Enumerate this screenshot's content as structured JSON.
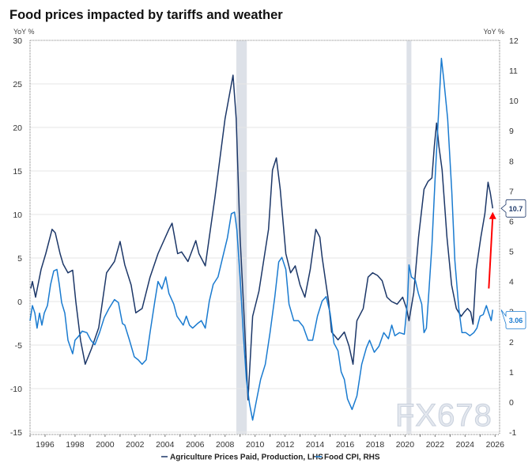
{
  "chart_data": {
    "type": "line",
    "title": "Food prices impacted by tariffs and weather",
    "left_axis": {
      "label": "YoY %",
      "ylim": [
        -15,
        30
      ],
      "ticks": [
        -15,
        -10,
        -5,
        0,
        5,
        10,
        15,
        20,
        25,
        30
      ]
    },
    "right_axis": {
      "label": "YoY %",
      "ylim": [
        -1,
        12
      ],
      "ticks": [
        -1,
        0,
        1,
        2,
        3,
        4,
        5,
        6,
        7,
        8,
        9,
        10,
        11,
        12
      ]
    },
    "x_axis": {
      "xlim": [
        1995,
        2026.3
      ],
      "ticks": [
        "1996",
        "1998",
        "2000",
        "2002",
        "2004",
        "2006",
        "2008",
        "2010",
        "2012",
        "2014",
        "2016",
        "2018",
        "2020",
        "2022",
        "2024",
        "2026"
      ]
    },
    "grid": "horizontal",
    "legend_placement": "bottom",
    "recessions": [
      [
        2008.75,
        2009.45
      ],
      [
        2020.1,
        2020.42
      ]
    ],
    "series": [
      {
        "name": "Agriculture Prices Paid, Production, LHS",
        "axis": "left",
        "color": "#1c3768",
        "last_value_label": "10.7",
        "points": [
          [
            1995.05,
            1.5
          ],
          [
            1995.16,
            2.3
          ],
          [
            1995.37,
            0.5
          ],
          [
            1995.74,
            3.7
          ],
          [
            1996.05,
            5.5
          ],
          [
            1996.47,
            8.3
          ],
          [
            1996.68,
            7.9
          ],
          [
            1997.0,
            5.5
          ],
          [
            1997.21,
            4.3
          ],
          [
            1997.53,
            3.3
          ],
          [
            1997.84,
            3.6
          ],
          [
            1998.05,
            0
          ],
          [
            1998.37,
            -4.5
          ],
          [
            1998.68,
            -7.2
          ],
          [
            1999.1,
            -5.4
          ],
          [
            1999.58,
            -3
          ],
          [
            2000.1,
            3.3
          ],
          [
            2000.63,
            4.6
          ],
          [
            2001.0,
            6.9
          ],
          [
            2001.32,
            4.2
          ],
          [
            2001.74,
            1.9
          ],
          [
            2002.05,
            -1.3
          ],
          [
            2002.47,
            -0.8
          ],
          [
            2003.0,
            2.8
          ],
          [
            2003.53,
            5.5
          ],
          [
            2004.26,
            8.3
          ],
          [
            2004.47,
            9
          ],
          [
            2004.84,
            5.5
          ],
          [
            2005.1,
            5.7
          ],
          [
            2005.53,
            4.6
          ],
          [
            2006.05,
            7
          ],
          [
            2006.26,
            5.5
          ],
          [
            2006.68,
            4.1
          ],
          [
            2006.95,
            7.4
          ],
          [
            2007.32,
            11.9
          ],
          [
            2008.0,
            21
          ],
          [
            2008.53,
            26
          ],
          [
            2008.74,
            21
          ],
          [
            2009.0,
            7.4
          ],
          [
            2009.32,
            -3.5
          ],
          [
            2009.53,
            -11.3
          ],
          [
            2009.84,
            -1.7
          ],
          [
            2010.26,
            1.2
          ],
          [
            2010.9,
            8.3
          ],
          [
            2011.16,
            15.1
          ],
          [
            2011.42,
            16.5
          ],
          [
            2011.68,
            12.9
          ],
          [
            2012.05,
            5.5
          ],
          [
            2012.37,
            3.3
          ],
          [
            2012.68,
            4.1
          ],
          [
            2013.0,
            1.9
          ],
          [
            2013.32,
            0.5
          ],
          [
            2013.68,
            3.7
          ],
          [
            2014.05,
            8.3
          ],
          [
            2014.32,
            7.4
          ],
          [
            2014.47,
            5.1
          ],
          [
            2014.74,
            1.9
          ],
          [
            2014.9,
            0
          ],
          [
            2015.1,
            -3.5
          ],
          [
            2015.53,
            -4.4
          ],
          [
            2015.95,
            -3.5
          ],
          [
            2016.26,
            -5.1
          ],
          [
            2016.53,
            -7.2
          ],
          [
            2016.79,
            -2.2
          ],
          [
            2017.21,
            -0.8
          ],
          [
            2017.53,
            2.8
          ],
          [
            2017.84,
            3.3
          ],
          [
            2018.16,
            3
          ],
          [
            2018.47,
            2.4
          ],
          [
            2018.79,
            0.5
          ],
          [
            2019.1,
            0
          ],
          [
            2019.47,
            -0.3
          ],
          [
            2019.84,
            0.5
          ],
          [
            2020.1,
            -0.8
          ],
          [
            2020.26,
            -2.2
          ],
          [
            2020.58,
            1
          ],
          [
            2020.9,
            7.4
          ],
          [
            2021.26,
            12.9
          ],
          [
            2021.53,
            13.8
          ],
          [
            2021.79,
            14.2
          ],
          [
            2021.95,
            17.8
          ],
          [
            2022.1,
            20.5
          ],
          [
            2022.26,
            17.8
          ],
          [
            2022.47,
            15.1
          ],
          [
            2022.79,
            7.4
          ],
          [
            2023.1,
            1.9
          ],
          [
            2023.42,
            -0.8
          ],
          [
            2023.74,
            -1.7
          ],
          [
            2023.95,
            -1.2
          ],
          [
            2024.16,
            -0.8
          ],
          [
            2024.37,
            -1.2
          ],
          [
            2024.53,
            -2.6
          ],
          [
            2024.74,
            3.7
          ],
          [
            2025.05,
            7.4
          ],
          [
            2025.32,
            10.1
          ],
          [
            2025.53,
            13.7
          ],
          [
            2025.68,
            12.5
          ],
          [
            2025.84,
            10.7
          ]
        ]
      },
      {
        "name": "Food CPI, RHS",
        "axis": "right",
        "color": "#1a7bd0",
        "last_value_label": "3.06",
        "points": [
          [
            1995.0,
            2.7
          ],
          [
            1995.16,
            3.2
          ],
          [
            1995.32,
            2.95
          ],
          [
            1995.47,
            2.45
          ],
          [
            1995.63,
            2.95
          ],
          [
            1995.79,
            2.55
          ],
          [
            1995.95,
            2.95
          ],
          [
            1996.16,
            3.2
          ],
          [
            1996.37,
            3.9
          ],
          [
            1996.58,
            4.35
          ],
          [
            1996.79,
            4.4
          ],
          [
            1996.95,
            3.9
          ],
          [
            1997.11,
            3.3
          ],
          [
            1997.32,
            2.95
          ],
          [
            1997.53,
            2.05
          ],
          [
            1997.84,
            1.6
          ],
          [
            1998.0,
            2.05
          ],
          [
            1998.26,
            2.2
          ],
          [
            1998.47,
            2.35
          ],
          [
            1998.79,
            2.3
          ],
          [
            1999.05,
            2.05
          ],
          [
            1999.32,
            1.9
          ],
          [
            1999.63,
            2.3
          ],
          [
            1999.95,
            2.8
          ],
          [
            2000.26,
            3.1
          ],
          [
            2000.63,
            3.4
          ],
          [
            2000.89,
            3.3
          ],
          [
            2001.16,
            2.6
          ],
          [
            2001.32,
            2.55
          ],
          [
            2001.63,
            2.05
          ],
          [
            2001.95,
            1.5
          ],
          [
            2002.21,
            1.4
          ],
          [
            2002.47,
            1.25
          ],
          [
            2002.74,
            1.4
          ],
          [
            2003.0,
            2.3
          ],
          [
            2003.32,
            3.35
          ],
          [
            2003.53,
            4.0
          ],
          [
            2003.79,
            3.75
          ],
          [
            2004.05,
            4.15
          ],
          [
            2004.26,
            3.6
          ],
          [
            2004.58,
            3.25
          ],
          [
            2004.79,
            2.85
          ],
          [
            2005.0,
            2.7
          ],
          [
            2005.21,
            2.55
          ],
          [
            2005.42,
            2.85
          ],
          [
            2005.63,
            2.55
          ],
          [
            2005.84,
            2.45
          ],
          [
            2006.16,
            2.6
          ],
          [
            2006.42,
            2.7
          ],
          [
            2006.68,
            2.45
          ],
          [
            2006.95,
            3.35
          ],
          [
            2007.21,
            3.9
          ],
          [
            2007.53,
            4.15
          ],
          [
            2007.84,
            4.8
          ],
          [
            2008.16,
            5.45
          ],
          [
            2008.42,
            6.25
          ],
          [
            2008.63,
            6.3
          ],
          [
            2008.79,
            5.7
          ],
          [
            2009.0,
            4.15
          ],
          [
            2009.21,
            2.3
          ],
          [
            2009.42,
            0.75
          ],
          [
            2009.63,
            -0.05
          ],
          [
            2009.84,
            -0.6
          ],
          [
            2010.11,
            0.1
          ],
          [
            2010.37,
            0.75
          ],
          [
            2010.68,
            1.25
          ],
          [
            2011.0,
            2.3
          ],
          [
            2011.32,
            3.5
          ],
          [
            2011.58,
            4.65
          ],
          [
            2011.79,
            4.8
          ],
          [
            2012.05,
            4.4
          ],
          [
            2012.26,
            3.25
          ],
          [
            2012.58,
            2.7
          ],
          [
            2012.89,
            2.7
          ],
          [
            2013.21,
            2.5
          ],
          [
            2013.53,
            2.05
          ],
          [
            2013.84,
            2.05
          ],
          [
            2014.16,
            2.85
          ],
          [
            2014.47,
            3.35
          ],
          [
            2014.74,
            3.5
          ],
          [
            2015.0,
            2.95
          ],
          [
            2015.26,
            1.95
          ],
          [
            2015.53,
            1.7
          ],
          [
            2015.74,
            1.0
          ],
          [
            2015.95,
            0.75
          ],
          [
            2016.16,
            0.1
          ],
          [
            2016.47,
            -0.25
          ],
          [
            2016.79,
            0.2
          ],
          [
            2017.11,
            1.25
          ],
          [
            2017.42,
            1.8
          ],
          [
            2017.63,
            2.05
          ],
          [
            2017.95,
            1.65
          ],
          [
            2018.26,
            1.85
          ],
          [
            2018.58,
            2.3
          ],
          [
            2018.89,
            2.1
          ],
          [
            2019.11,
            2.55
          ],
          [
            2019.32,
            2.2
          ],
          [
            2019.63,
            2.3
          ],
          [
            2019.95,
            2.25
          ],
          [
            2020.16,
            3.35
          ],
          [
            2020.26,
            4.55
          ],
          [
            2020.42,
            4.15
          ],
          [
            2020.68,
            4.05
          ],
          [
            2020.89,
            3.6
          ],
          [
            2021.11,
            3.25
          ],
          [
            2021.26,
            2.3
          ],
          [
            2021.42,
            2.45
          ],
          [
            2021.58,
            3.6
          ],
          [
            2021.79,
            5.2
          ],
          [
            2022.0,
            7.4
          ],
          [
            2022.21,
            9.4
          ],
          [
            2022.42,
            11.4
          ],
          [
            2022.58,
            10.7
          ],
          [
            2022.84,
            9.4
          ],
          [
            2023.11,
            7.0
          ],
          [
            2023.32,
            4.7
          ],
          [
            2023.58,
            3.1
          ],
          [
            2023.79,
            2.3
          ],
          [
            2024.05,
            2.3
          ],
          [
            2024.32,
            2.2
          ],
          [
            2024.58,
            2.3
          ],
          [
            2024.79,
            2.45
          ],
          [
            2025.0,
            2.85
          ],
          [
            2025.21,
            2.9
          ],
          [
            2025.42,
            3.2
          ],
          [
            2025.58,
            2.95
          ],
          [
            2025.74,
            2.7
          ],
          [
            2025.84,
            3.06
          ]
        ]
      }
    ],
    "annotations": [
      {
        "type": "arrow",
        "color": "#ff0000",
        "from": [
          2025.58,
          1.5
        ],
        "to": [
          2025.84,
          10.3
        ],
        "axis": "left"
      }
    ]
  },
  "watermark": "FX678"
}
